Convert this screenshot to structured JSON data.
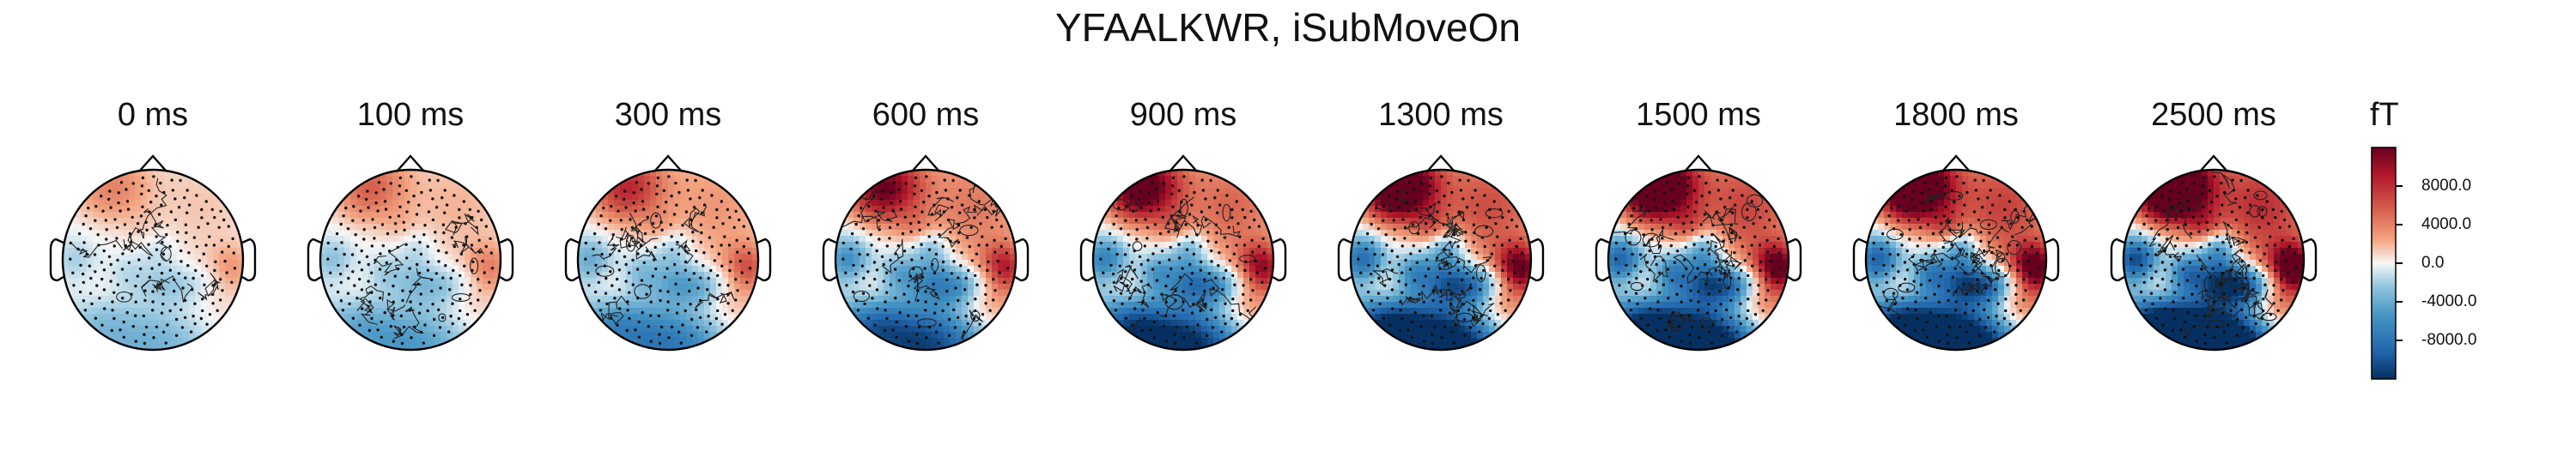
{
  "chart_data": {
    "type": "heatmap",
    "subtype": "topomap-series",
    "title": "YFAALKWR, iSubMoveOn",
    "time_unit": "ms",
    "panels": [
      {
        "time": 0,
        "label": "0 ms",
        "intensity": 0.18
      },
      {
        "time": 100,
        "label": "100 ms",
        "intensity": 0.25
      },
      {
        "time": 300,
        "label": "300 ms",
        "intensity": 0.38
      },
      {
        "time": 600,
        "label": "600 ms",
        "intensity": 0.55
      },
      {
        "time": 900,
        "label": "900 ms",
        "intensity": 0.65
      },
      {
        "time": 1300,
        "label": "1300 ms",
        "intensity": 0.8
      },
      {
        "time": 1500,
        "label": "1500 ms",
        "intensity": 0.85
      },
      {
        "time": 1800,
        "label": "1800 ms",
        "intensity": 0.88
      },
      {
        "time": 2500,
        "label": "2500 ms",
        "intensity": 1.0
      }
    ],
    "colorbar": {
      "unit": "fT",
      "colormap": "RdBu_r",
      "range": [
        -12000,
        12000
      ],
      "ticks": [
        {
          "value": 8000,
          "label": "8000.0"
        },
        {
          "value": 4000,
          "label": "4000.0"
        },
        {
          "value": 0,
          "label": "0.0"
        },
        {
          "value": -4000,
          "label": "-4000.0"
        },
        {
          "value": -8000,
          "label": "-8000.0"
        }
      ]
    },
    "colors": {
      "max": "#67001f",
      "high": "#d6604d",
      "mid": "#f7f7f7",
      "low": "#4393c3",
      "min": "#053061"
    }
  }
}
